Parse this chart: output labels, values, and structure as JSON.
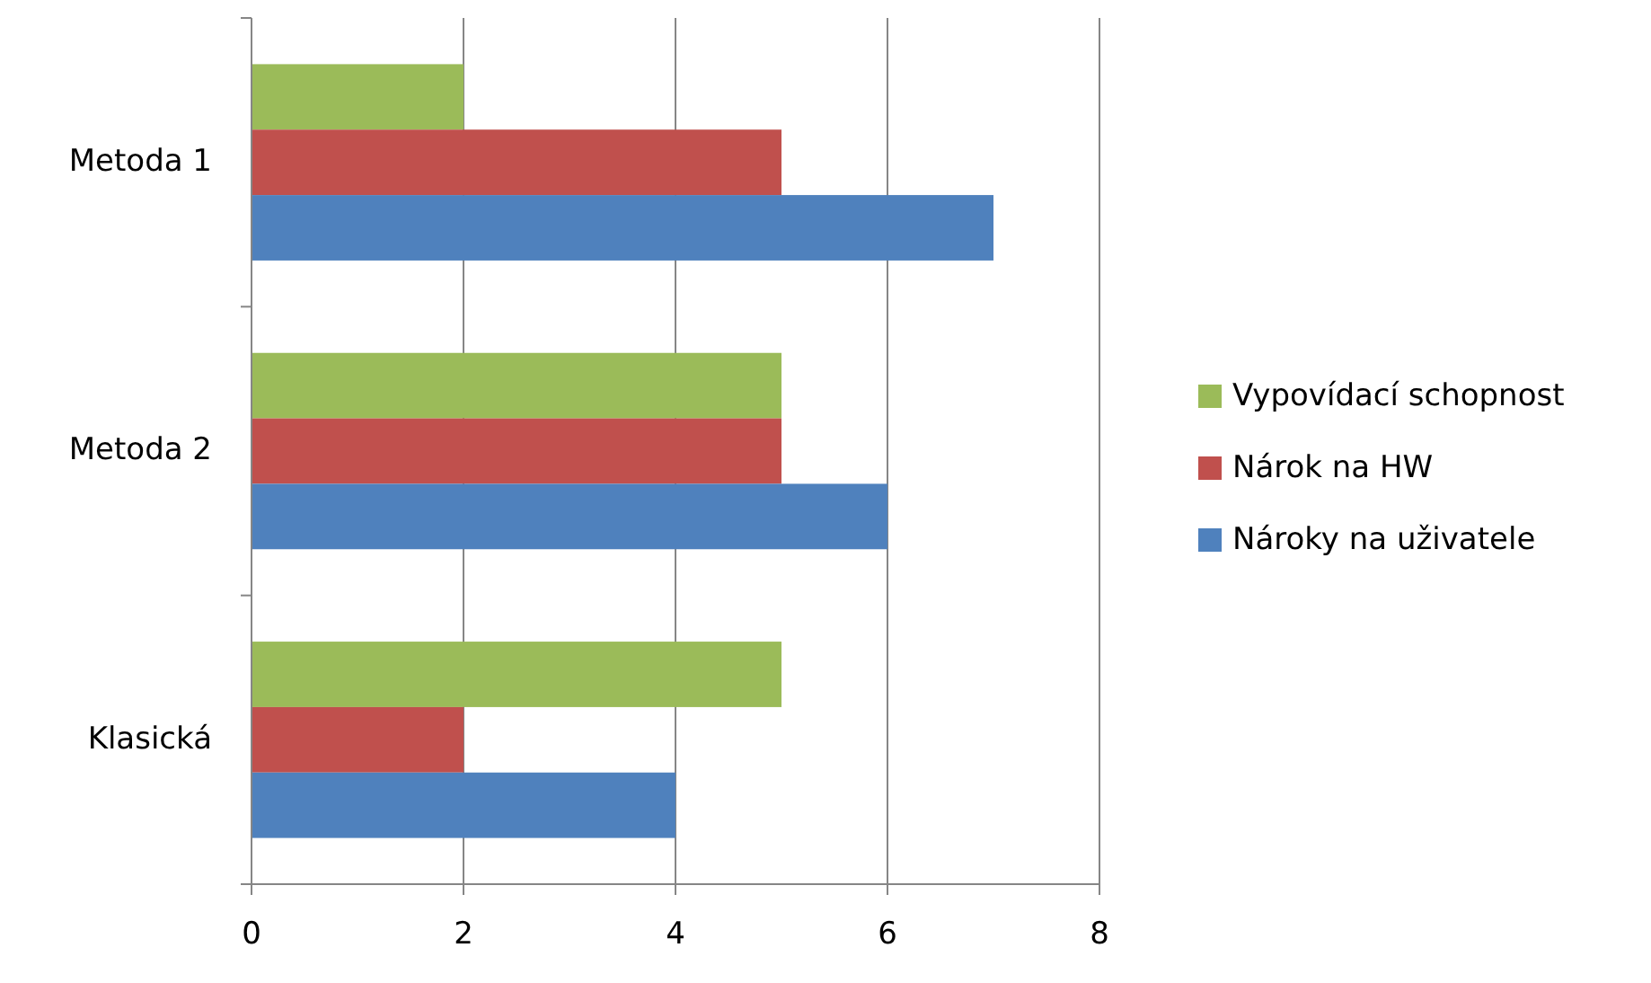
{
  "chart_data": {
    "type": "bar",
    "orientation": "horizontal",
    "categories": [
      "Metoda 1",
      "Metoda 2",
      "Klasická"
    ],
    "series": [
      {
        "name": "Vypovídací schopnost",
        "color": "#9bbb59",
        "values": [
          2,
          5,
          5
        ]
      },
      {
        "name": "Nárok na HW",
        "color": "#c0504d",
        "values": [
          5,
          5,
          2
        ]
      },
      {
        "name": "Nároky na uživatele",
        "color": "#4f81bd",
        "values": [
          7,
          6,
          4
        ]
      }
    ],
    "xlim": [
      0,
      8
    ],
    "xticks": [
      0,
      2,
      4,
      6,
      8
    ],
    "grid": "x",
    "legend": "right"
  }
}
